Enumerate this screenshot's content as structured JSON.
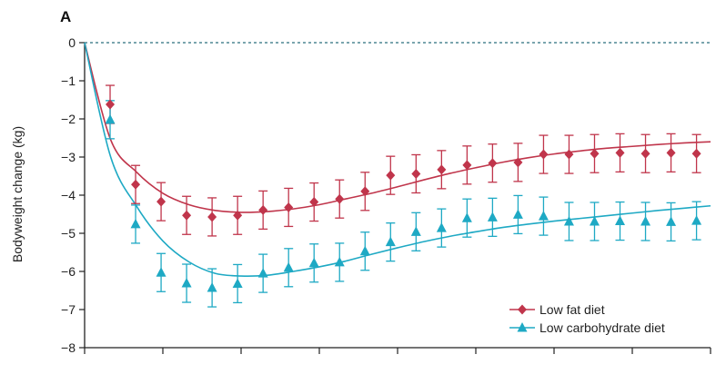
{
  "chart_data": {
    "type": "line",
    "panel_label": "A",
    "title": "",
    "xlabel": "",
    "ylabel": "Bodyweight change (kg)",
    "ylim": [
      -8,
      0
    ],
    "yticks": [
      0,
      -1,
      -2,
      -3,
      -4,
      -5,
      -6,
      -7,
      -8
    ],
    "ytick_labels": [
      "0",
      "−1",
      "−2",
      "−3",
      "−4",
      "−5",
      "−6",
      "−7",
      "−8"
    ],
    "x_tick_count": 9,
    "reference_line": 0,
    "legend_position": "bottom-right",
    "series": [
      {
        "name": "Low fat diet",
        "color": "#c0354b",
        "marker": "diamond",
        "points": [
          -1.62,
          -3.72,
          -4.17,
          -4.53,
          -4.57,
          -4.53,
          -4.39,
          -4.32,
          -4.18,
          -4.1,
          -3.9,
          -3.48,
          -3.44,
          -3.33,
          -3.21,
          -3.16,
          -3.14,
          -2.93,
          -2.93,
          -2.91,
          -2.89,
          -2.91,
          -2.89,
          -2.91
        ],
        "error": [
          0.5,
          0.5,
          0.5,
          0.5,
          0.5,
          0.5,
          0.5,
          0.5,
          0.5,
          0.5,
          0.5,
          0.5,
          0.5,
          0.5,
          0.5,
          0.5,
          0.5,
          0.5,
          0.5,
          0.5,
          0.5,
          0.5,
          0.5,
          0.5
        ],
        "fit": [
          0,
          -2.55,
          -3.4,
          -3.95,
          -4.25,
          -4.4,
          -4.45,
          -4.43,
          -4.36,
          -4.25,
          -4.1,
          -3.95,
          -3.78,
          -3.6,
          -3.43,
          -3.28,
          -3.14,
          -3.02,
          -2.92,
          -2.84,
          -2.77,
          -2.72,
          -2.67,
          -2.63,
          -2.6
        ]
      },
      {
        "name": "Low carbohydrate diet",
        "color": "#1ea9c4",
        "marker": "triangle",
        "points": [
          -2.02,
          -4.76,
          -6.03,
          -6.31,
          -6.43,
          -6.32,
          -6.05,
          -5.9,
          -5.78,
          -5.76,
          -5.47,
          -5.23,
          -4.96,
          -4.86,
          -4.6,
          -4.58,
          -4.51,
          -4.55,
          -4.69,
          -4.69,
          -4.68,
          -4.69,
          -4.7,
          -4.67
        ],
        "error": [
          0.5,
          0.5,
          0.5,
          0.5,
          0.5,
          0.5,
          0.5,
          0.5,
          0.5,
          0.5,
          0.5,
          0.5,
          0.5,
          0.5,
          0.5,
          0.5,
          0.5,
          0.5,
          0.5,
          0.5,
          0.5,
          0.5,
          0.5,
          0.5
        ],
        "fit": [
          0,
          -3.0,
          -4.3,
          -5.2,
          -5.75,
          -6.05,
          -6.12,
          -6.1,
          -6.0,
          -5.88,
          -5.73,
          -5.55,
          -5.38,
          -5.22,
          -5.08,
          -4.96,
          -4.85,
          -4.76,
          -4.68,
          -4.61,
          -4.54,
          -4.47,
          -4.4,
          -4.34,
          -4.28
        ]
      }
    ]
  }
}
